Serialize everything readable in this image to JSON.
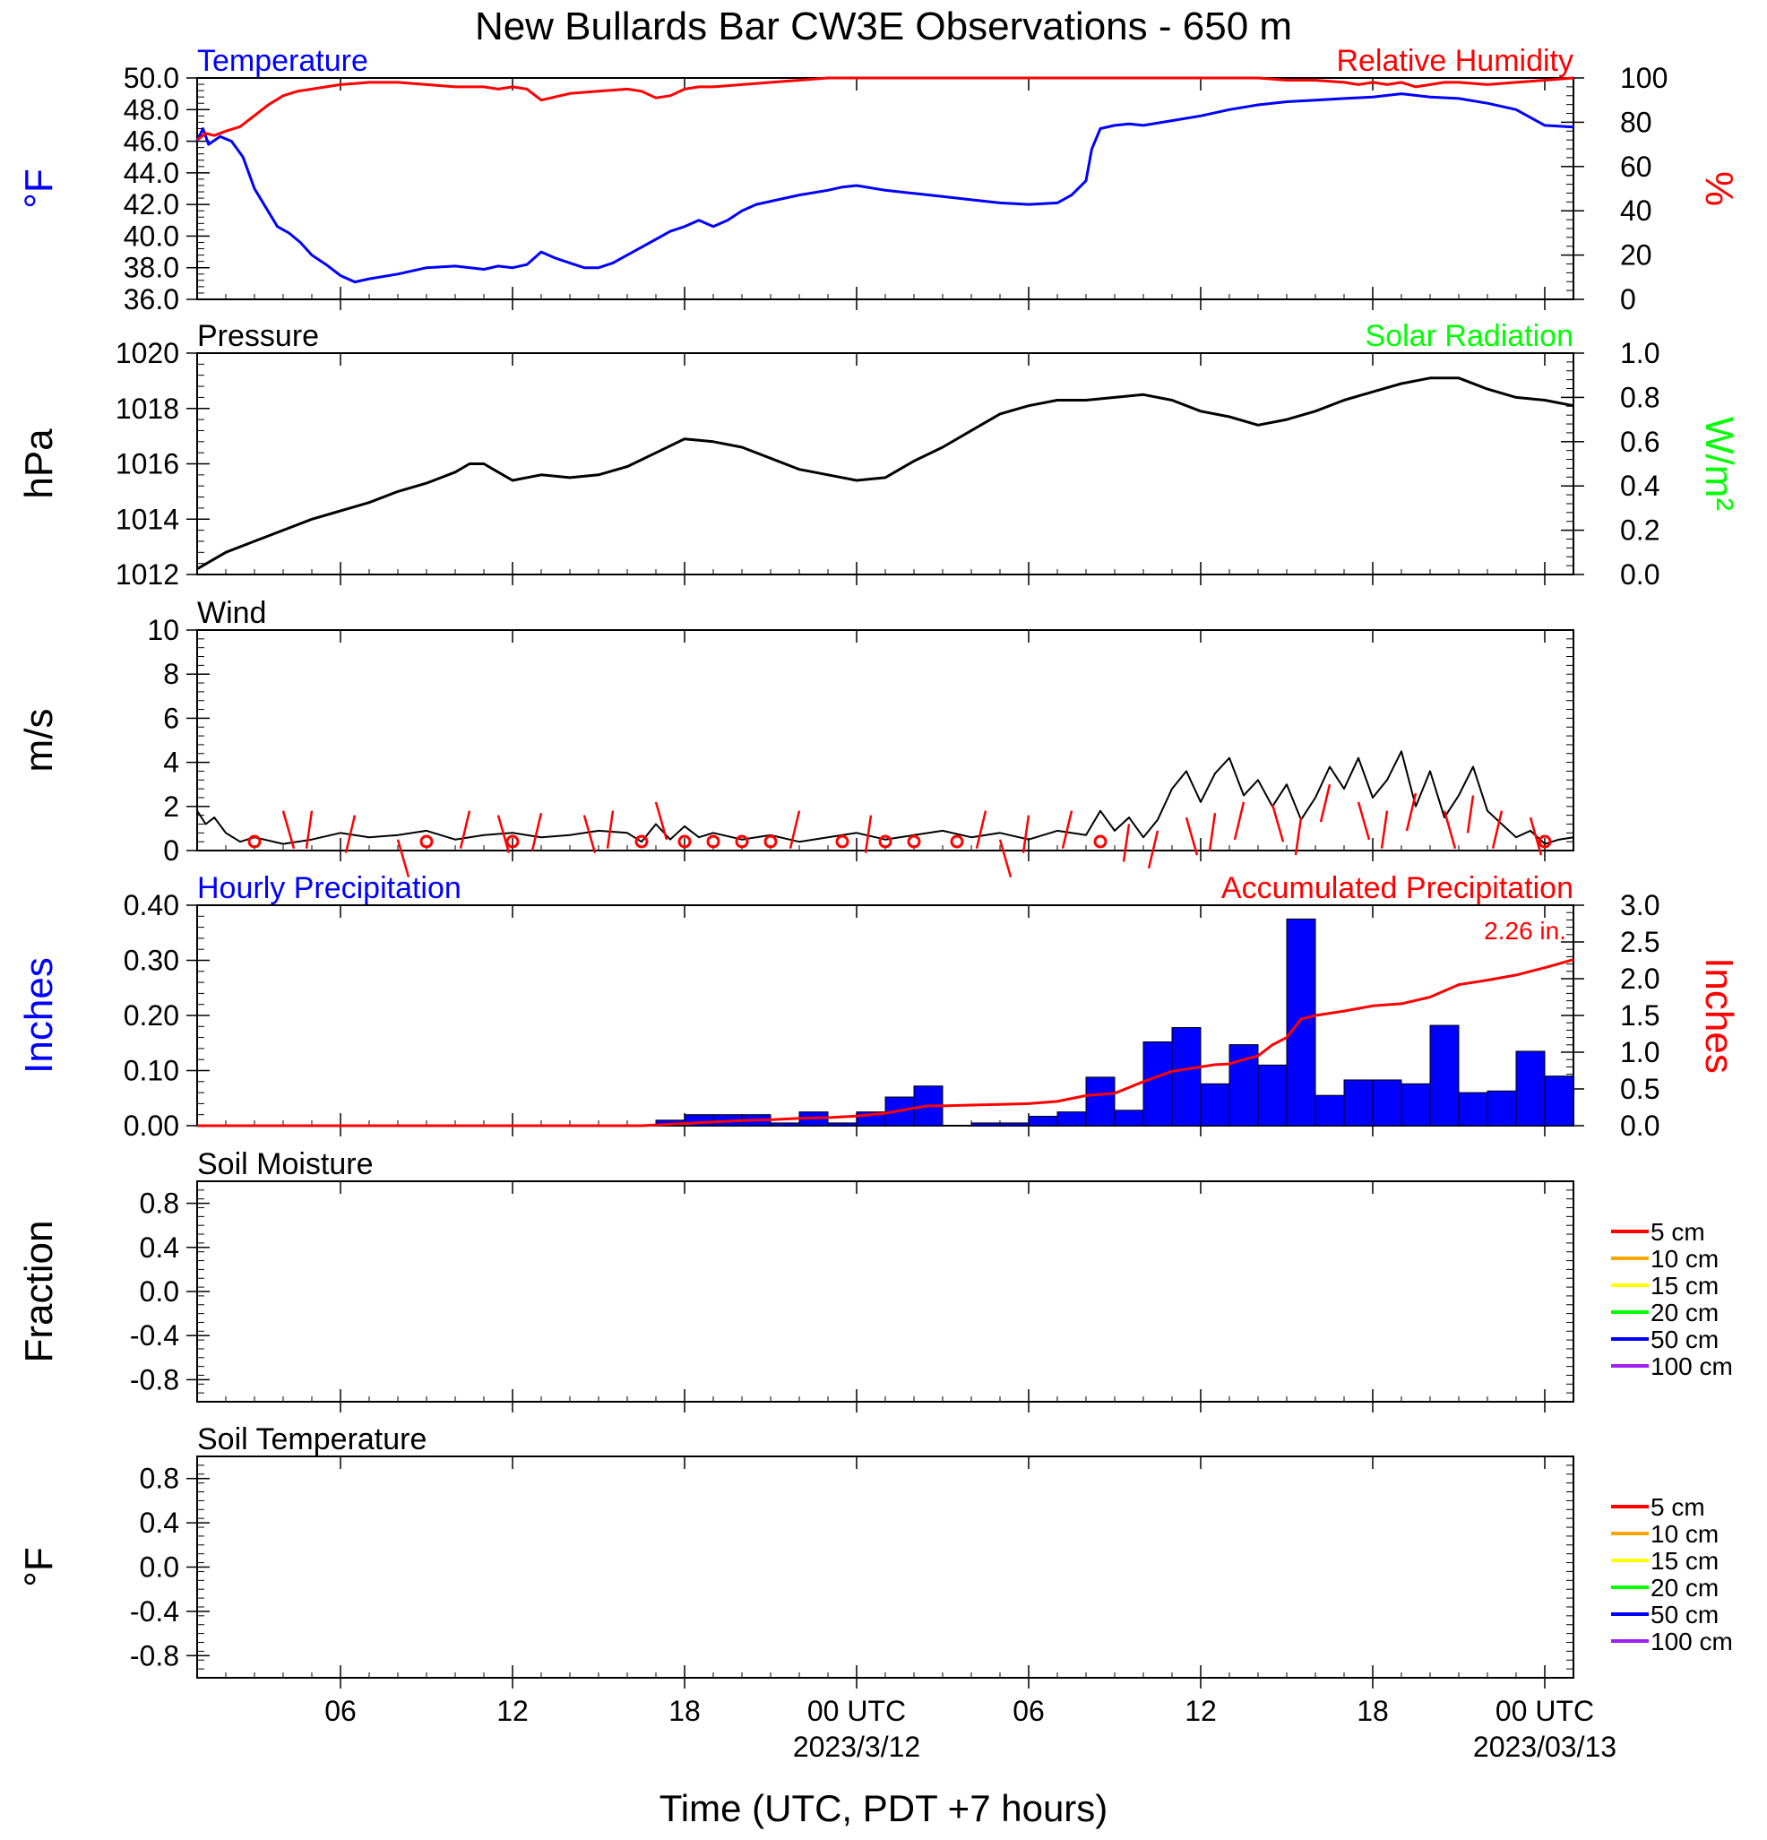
{
  "title": "New Bullards Bar CW3E Observations - 650 m",
  "x_axis": {
    "label": "Time (UTC, PDT +7 hours)",
    "range_hours": [
      0,
      48
    ],
    "ticks": [
      {
        "t": 5,
        "label": "06",
        "date": ""
      },
      {
        "t": 11,
        "label": "12",
        "date": ""
      },
      {
        "t": 17,
        "label": "18",
        "date": ""
      },
      {
        "t": 23,
        "label": "00 UTC",
        "date": "2023/3/12"
      },
      {
        "t": 29,
        "label": "06",
        "date": ""
      },
      {
        "t": 35,
        "label": "12",
        "date": ""
      },
      {
        "t": 41,
        "label": "18",
        "date": ""
      },
      {
        "t": 47,
        "label": "00 UTC",
        "date": "2023/03/13"
      }
    ]
  },
  "colors": {
    "temperature": "#0000ff",
    "humidity": "#ff0000",
    "pressure": "#000000",
    "solar": "#00ff00",
    "wind": "#000000",
    "barb": "#ff0000",
    "hourly": "#0000ff",
    "accum": "#ff0000"
  },
  "chart_data": [
    {
      "type": "line",
      "panel": "temperature-humidity",
      "left_title": "Temperature",
      "right_title": "Relative Humidity",
      "ylabel": "°F",
      "y2label": "%",
      "ylim": [
        36,
        50
      ],
      "y_ticks": [
        "36.0",
        "38.0",
        "40.0",
        "42.0",
        "44.0",
        "46.0",
        "48.0",
        "50.0"
      ],
      "y2lim": [
        0,
        100
      ],
      "y2_ticks": [
        "0",
        "20",
        "40",
        "60",
        "80",
        "100"
      ],
      "series": [
        {
          "name": "Temperature",
          "axis": "left",
          "color": "#0000ff",
          "x": [
            0,
            0.2,
            0.4,
            0.8,
            1.2,
            1.6,
            2,
            2.4,
            2.8,
            3.2,
            3.6,
            4,
            4.5,
            5,
            5.5,
            6,
            7,
            8,
            9,
            10,
            10.5,
            11,
            11.5,
            12,
            12.5,
            13,
            13.5,
            14,
            14.5,
            15,
            15.5,
            16,
            16.5,
            17,
            17.5,
            18,
            18.5,
            19,
            19.5,
            20,
            20.5,
            21,
            22,
            22.5,
            23,
            24,
            25,
            26,
            27,
            28,
            29,
            30,
            30.5,
            31,
            31.2,
            31.5,
            32,
            32.5,
            33,
            34,
            35,
            36,
            37,
            38,
            39,
            40,
            41,
            42,
            43,
            44,
            45,
            46,
            47,
            48
          ],
          "y": [
            46.0,
            46.8,
            45.8,
            46.3,
            46.0,
            45.0,
            43.0,
            41.8,
            40.6,
            40.2,
            39.6,
            38.8,
            38.2,
            37.5,
            37.1,
            37.3,
            37.6,
            38.0,
            38.1,
            37.9,
            38.1,
            38.0,
            38.2,
            39.0,
            38.6,
            38.3,
            38.0,
            38.0,
            38.3,
            38.8,
            39.3,
            39.8,
            40.3,
            40.6,
            41.0,
            40.6,
            41.0,
            41.6,
            42.0,
            42.2,
            42.4,
            42.6,
            42.9,
            43.1,
            43.2,
            42.9,
            42.7,
            42.5,
            42.3,
            42.1,
            42.0,
            42.1,
            42.6,
            43.5,
            45.5,
            46.8,
            47.0,
            47.1,
            47.0,
            47.3,
            47.6,
            48.0,
            48.3,
            48.5,
            48.6,
            48.7,
            48.8,
            49.0,
            48.8,
            48.7,
            48.4,
            48.0,
            47.0,
            46.9
          ]
        },
        {
          "name": "Relative Humidity",
          "axis": "right",
          "color": "#ff0000",
          "x": [
            0,
            0.3,
            0.6,
            1,
            1.5,
            2,
            2.5,
            3,
            3.5,
            4,
            5,
            6,
            7,
            8,
            9,
            10,
            10.5,
            11,
            11.5,
            12,
            13,
            14,
            15,
            15.5,
            16,
            16.5,
            17,
            17.5,
            18,
            19,
            20,
            21,
            22,
            23,
            30,
            35,
            37,
            38,
            39,
            40,
            40.5,
            41,
            41.5,
            42,
            42.5,
            43,
            43.5,
            44,
            45,
            46,
            47,
            48
          ],
          "y": [
            72,
            75,
            74,
            76,
            78,
            83,
            88,
            92,
            94,
            95,
            97,
            98,
            98,
            97,
            96,
            96,
            95,
            96,
            95,
            90,
            93,
            94,
            95,
            94,
            91,
            92,
            95,
            96,
            96,
            97,
            98,
            99,
            100,
            100,
            100,
            100,
            100,
            99,
            99,
            98,
            97,
            98,
            97,
            98,
            96,
            97,
            98,
            98,
            97,
            98,
            99,
            100
          ]
        }
      ]
    },
    {
      "type": "line",
      "panel": "pressure-solar",
      "left_title": "Pressure",
      "right_title": "Solar Radiation",
      "ylabel": "hPa",
      "y2label": "W/m²",
      "ylim": [
        1012,
        1020
      ],
      "y_ticks": [
        "1012",
        "1014",
        "1016",
        "1018",
        "1020"
      ],
      "y2lim": [
        0,
        1
      ],
      "y2_ticks": [
        "0.0",
        "0.2",
        "0.4",
        "0.6",
        "0.8",
        "1.0"
      ],
      "series": [
        {
          "name": "Pressure",
          "axis": "left",
          "color": "#000000",
          "x": [
            0,
            1,
            2,
            3,
            4,
            5,
            6,
            7,
            8,
            9,
            9.5,
            10,
            10.5,
            11,
            12,
            13,
            14,
            15,
            16,
            17,
            18,
            19,
            20,
            21,
            22,
            23,
            24,
            25,
            26,
            27,
            28,
            29,
            30,
            31,
            32,
            33,
            34,
            35,
            36,
            37,
            38,
            39,
            40,
            41,
            42,
            43,
            44,
            45,
            46,
            47,
            48
          ],
          "y": [
            1012.2,
            1012.8,
            1013.2,
            1013.6,
            1014.0,
            1014.3,
            1014.6,
            1015.0,
            1015.3,
            1015.7,
            1016.0,
            1016.0,
            1015.7,
            1015.4,
            1015.6,
            1015.5,
            1015.6,
            1015.9,
            1016.4,
            1016.9,
            1016.8,
            1016.6,
            1016.2,
            1015.8,
            1015.6,
            1015.4,
            1015.5,
            1016.1,
            1016.6,
            1017.2,
            1017.8,
            1018.1,
            1018.3,
            1018.3,
            1018.4,
            1018.5,
            1018.3,
            1017.9,
            1017.7,
            1017.4,
            1017.6,
            1017.9,
            1018.3,
            1018.6,
            1018.9,
            1019.1,
            1019.1,
            1018.7,
            1018.4,
            1018.3,
            1018.1
          ]
        }
      ]
    },
    {
      "type": "line",
      "panel": "wind",
      "left_title": "Wind",
      "ylabel": "m/s",
      "ylim": [
        0,
        10
      ],
      "y_ticks": [
        "0",
        "2",
        "4",
        "6",
        "8",
        "10"
      ],
      "series": [
        {
          "name": "Wind",
          "axis": "left",
          "color": "#000000",
          "x": [
            0,
            0.3,
            0.6,
            1,
            1.5,
            2,
            3,
            4,
            5,
            6,
            7,
            8,
            9,
            10,
            11,
            12,
            13,
            14,
            15,
            15.5,
            16,
            16.5,
            17,
            17.5,
            18,
            19,
            20,
            21,
            22,
            23,
            24,
            25,
            26,
            27,
            28,
            29,
            30,
            31,
            31.5,
            32,
            32.5,
            33,
            33.5,
            34,
            34.5,
            35,
            35.5,
            36,
            36.5,
            37,
            37.5,
            38,
            38.5,
            39,
            39.5,
            40,
            40.5,
            41,
            41.5,
            42,
            42.5,
            43,
            43.5,
            44,
            44.5,
            45,
            45.5,
            46,
            46.5,
            47,
            47.5,
            48
          ],
          "y": [
            1.8,
            1.2,
            1.5,
            0.8,
            0.4,
            0.6,
            0.3,
            0.5,
            0.8,
            0.6,
            0.7,
            0.9,
            0.5,
            0.7,
            0.8,
            0.6,
            0.7,
            0.9,
            0.8,
            0.4,
            1.2,
            0.5,
            1.1,
            0.6,
            0.8,
            0.5,
            0.7,
            0.4,
            0.6,
            0.8,
            0.5,
            0.7,
            0.9,
            0.6,
            0.8,
            0.5,
            0.9,
            0.7,
            1.8,
            0.9,
            1.5,
            0.6,
            1.4,
            2.8,
            3.6,
            2.2,
            3.5,
            4.2,
            2.5,
            3.2,
            2.0,
            3.0,
            1.4,
            2.4,
            3.8,
            2.8,
            4.2,
            2.4,
            3.2,
            4.5,
            2.0,
            3.6,
            1.5,
            2.5,
            3.8,
            1.8,
            1.2,
            0.6,
            0.9,
            0.3,
            0.5,
            0.6
          ]
        },
        {
          "name": "Wind barbs",
          "type": "barb",
          "color": "#ff0000",
          "x": [
            2,
            3,
            4,
            5.5,
            7,
            8,
            9.5,
            10.5,
            11,
            12,
            13.5,
            14.5,
            15.5,
            16,
            17,
            18,
            19,
            20,
            21,
            22.5,
            23.5,
            24,
            25,
            26.5,
            27.5,
            28,
            29,
            30.5,
            31.5,
            32.5,
            33.5,
            34.5,
            35.5,
            36.5,
            37.5,
            38.5,
            39.5,
            40.5,
            41.5,
            42.5,
            43.5,
            44.5,
            45.5,
            46.5,
            47
          ],
          "y": [
            0.3,
            1.8,
            1.8,
            1.6,
            0.5,
            0.3,
            1.8,
            1.6,
            0.4,
            1.7,
            1.6,
            1.8,
            0,
            2.2,
            0.3,
            0.3,
            0.3,
            0.3,
            1.8,
            0.3,
            1.6,
            0,
            0.3,
            0.4,
            1.8,
            0.5,
            1.6,
            1.8,
            0.4,
            1.2,
            0.9,
            1.5,
            1.7,
            2.2,
            2.1,
            1.5,
            3.0,
            2.2,
            1.8,
            2.6,
            1.8,
            2.5,
            1.8,
            1.5,
            0
          ]
        }
      ]
    },
    {
      "type": "bar",
      "panel": "precipitation",
      "left_title": "Hourly Precipitation",
      "right_title": "Accumulated Precipitation",
      "annotation": "2.26 in.",
      "ylabel": "Inches",
      "y2label": "Inches",
      "ylim": [
        0,
        0.4
      ],
      "y_ticks": [
        "0.00",
        "0.10",
        "0.20",
        "0.30",
        "0.40"
      ],
      "y2lim": [
        0,
        3
      ],
      "y2_ticks": [
        "0.0",
        "0.5",
        "1.0",
        "1.5",
        "2.0",
        "2.5",
        "3.0"
      ],
      "series": [
        {
          "name": "Hourly Precipitation",
          "axis": "left",
          "color": "#0000ff",
          "x": [
            16,
            17,
            18,
            19,
            20,
            21,
            22,
            23,
            24,
            25,
            26,
            27,
            28,
            29,
            30,
            31,
            32,
            33,
            34,
            35,
            36,
            37,
            38,
            39,
            40,
            41,
            42,
            43,
            44,
            45,
            46,
            47
          ],
          "values": [
            0.01,
            0.02,
            0.02,
            0.02,
            0.005,
            0.025,
            0.005,
            0.025,
            0.052,
            0.072,
            0.0,
            0.005,
            0.005,
            0.017,
            0.025,
            0.088,
            0.028,
            0.152,
            0.178,
            0.076,
            0.147,
            0.11,
            0.375,
            0.055,
            0.083,
            0.083,
            0.076,
            0.182,
            0.06,
            0.063,
            0.135,
            0.09
          ]
        },
        {
          "name": "Accumulated Precipitation",
          "axis": "right",
          "color": "#ff0000",
          "x": [
            0,
            15.5,
            16,
            17,
            18,
            19,
            20,
            21,
            22,
            23,
            24,
            25,
            25.5,
            26,
            27,
            28,
            29,
            30,
            31,
            32,
            33,
            34,
            35,
            35.5,
            36,
            36.5,
            37,
            37.5,
            38,
            38.5,
            39,
            40,
            41,
            42,
            43,
            44,
            45,
            46,
            47,
            48
          ],
          "y": [
            0,
            0,
            0.01,
            0.03,
            0.05,
            0.07,
            0.08,
            0.1,
            0.11,
            0.13,
            0.17,
            0.24,
            0.27,
            0.27,
            0.28,
            0.29,
            0.3,
            0.33,
            0.41,
            0.44,
            0.6,
            0.74,
            0.8,
            0.83,
            0.84,
            0.9,
            0.95,
            1.1,
            1.2,
            1.45,
            1.5,
            1.56,
            1.63,
            1.66,
            1.75,
            1.92,
            1.98,
            2.05,
            2.15,
            2.26
          ]
        }
      ]
    },
    {
      "type": "line",
      "panel": "soil-moisture",
      "left_title": "Soil Moisture",
      "ylabel": "Fraction",
      "ylim": [
        -1,
        1
      ],
      "y_ticks": [
        "-0.8",
        "-0.4",
        "0.0",
        "0.4",
        "0.8"
      ],
      "legend": [
        {
          "label": "5 cm",
          "color": "#ff0000"
        },
        {
          "label": "10 cm",
          "color": "#ffa500"
        },
        {
          "label": "15 cm",
          "color": "#ffff00"
        },
        {
          "label": "20 cm",
          "color": "#00ff00"
        },
        {
          "label": "50 cm",
          "color": "#0000ff"
        },
        {
          "label": "100 cm",
          "color": "#a020f0"
        }
      ],
      "series": []
    },
    {
      "type": "line",
      "panel": "soil-temperature",
      "left_title": "Soil Temperature",
      "ylabel": "°F",
      "ylim": [
        -1,
        1
      ],
      "y_ticks": [
        "-0.8",
        "-0.4",
        "0.0",
        "0.4",
        "0.8"
      ],
      "legend": [
        {
          "label": "5 cm",
          "color": "#ff0000"
        },
        {
          "label": "10 cm",
          "color": "#ffa500"
        },
        {
          "label": "15 cm",
          "color": "#ffff00"
        },
        {
          "label": "20 cm",
          "color": "#00ff00"
        },
        {
          "label": "50 cm",
          "color": "#0000ff"
        },
        {
          "label": "100 cm",
          "color": "#a020f0"
        }
      ],
      "series": []
    }
  ]
}
